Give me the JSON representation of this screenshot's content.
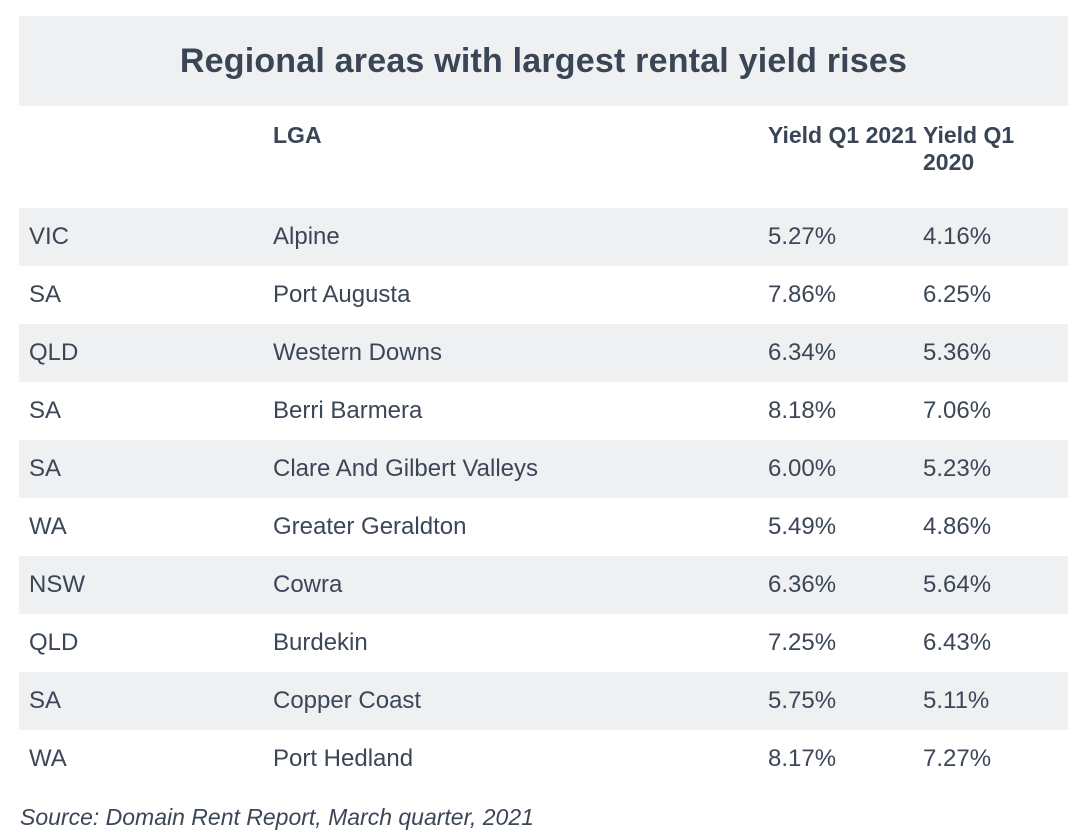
{
  "title": "Regional areas with largest rental yield rises",
  "columns": {
    "state": "",
    "lga": "LGA",
    "yield_2021": "Yield Q1 2021",
    "yield_2020": "Yield Q1 2020"
  },
  "rows": [
    {
      "state": "VIC",
      "lga": "Alpine",
      "yield_2021": "5.27%",
      "yield_2020": "4.16%"
    },
    {
      "state": "SA",
      "lga": "Port Augusta",
      "yield_2021": "7.86%",
      "yield_2020": "6.25%"
    },
    {
      "state": "QLD",
      "lga": "Western Downs",
      "yield_2021": "6.34%",
      "yield_2020": "5.36%"
    },
    {
      "state": "SA",
      "lga": "Berri Barmera",
      "yield_2021": "8.18%",
      "yield_2020": "7.06%"
    },
    {
      "state": "SA",
      "lga": "Clare And Gilbert Valleys",
      "yield_2021": "6.00%",
      "yield_2020": "5.23%"
    },
    {
      "state": "WA",
      "lga": "Greater Geraldton",
      "yield_2021": "5.49%",
      "yield_2020": "4.86%"
    },
    {
      "state": "NSW",
      "lga": "Cowra",
      "yield_2021": "6.36%",
      "yield_2020": "5.64%"
    },
    {
      "state": "QLD",
      "lga": "Burdekin",
      "yield_2021": "7.25%",
      "yield_2020": "6.43%"
    },
    {
      "state": "SA",
      "lga": "Copper Coast",
      "yield_2021": "5.75%",
      "yield_2020": "5.11%"
    },
    {
      "state": "WA",
      "lga": "Port Hedland",
      "yield_2021": "8.17%",
      "yield_2020": "7.27%"
    }
  ],
  "source": "Source: Domain Rent Report, March quarter, 2021"
}
